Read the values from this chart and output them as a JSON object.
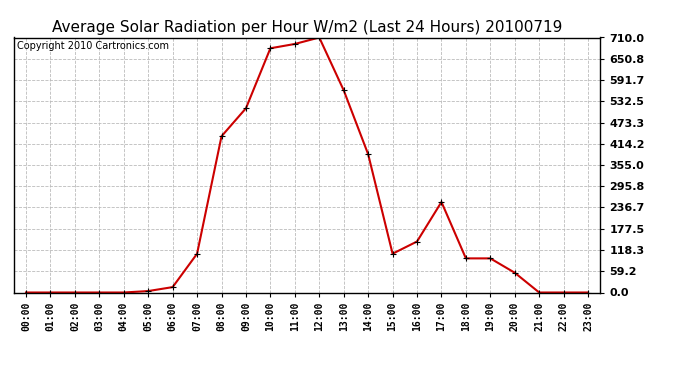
{
  "title": "Average Solar Radiation per Hour W/m2 (Last 24 Hours) 20100719",
  "copyright": "Copyright 2010 Cartronics.com",
  "hours": [
    "00:00",
    "01:00",
    "02:00",
    "03:00",
    "04:00",
    "05:00",
    "06:00",
    "07:00",
    "08:00",
    "09:00",
    "10:00",
    "11:00",
    "12:00",
    "13:00",
    "14:00",
    "15:00",
    "16:00",
    "17:00",
    "18:00",
    "19:00",
    "20:00",
    "21:00",
    "22:00",
    "23:00"
  ],
  "values": [
    0.0,
    0.0,
    0.0,
    0.0,
    0.0,
    4.0,
    15.0,
    108.0,
    435.0,
    513.0,
    680.0,
    692.0,
    710.0,
    563.0,
    385.0,
    108.0,
    142.0,
    252.0,
    95.0,
    95.0,
    55.0,
    0.0,
    0.0,
    0.0
  ],
  "ymin": 0.0,
  "ymax": 710.0,
  "yticks": [
    0.0,
    59.2,
    118.3,
    177.5,
    236.7,
    295.8,
    355.0,
    414.2,
    473.3,
    532.5,
    591.7,
    650.8,
    710.0
  ],
  "line_color": "#cc0000",
  "marker": "+",
  "grid_color": "#bbbbbb",
  "bg_color": "#ffffff",
  "title_fontsize": 11,
  "copyright_fontsize": 7,
  "fig_width": 6.9,
  "fig_height": 3.75,
  "dpi": 100
}
